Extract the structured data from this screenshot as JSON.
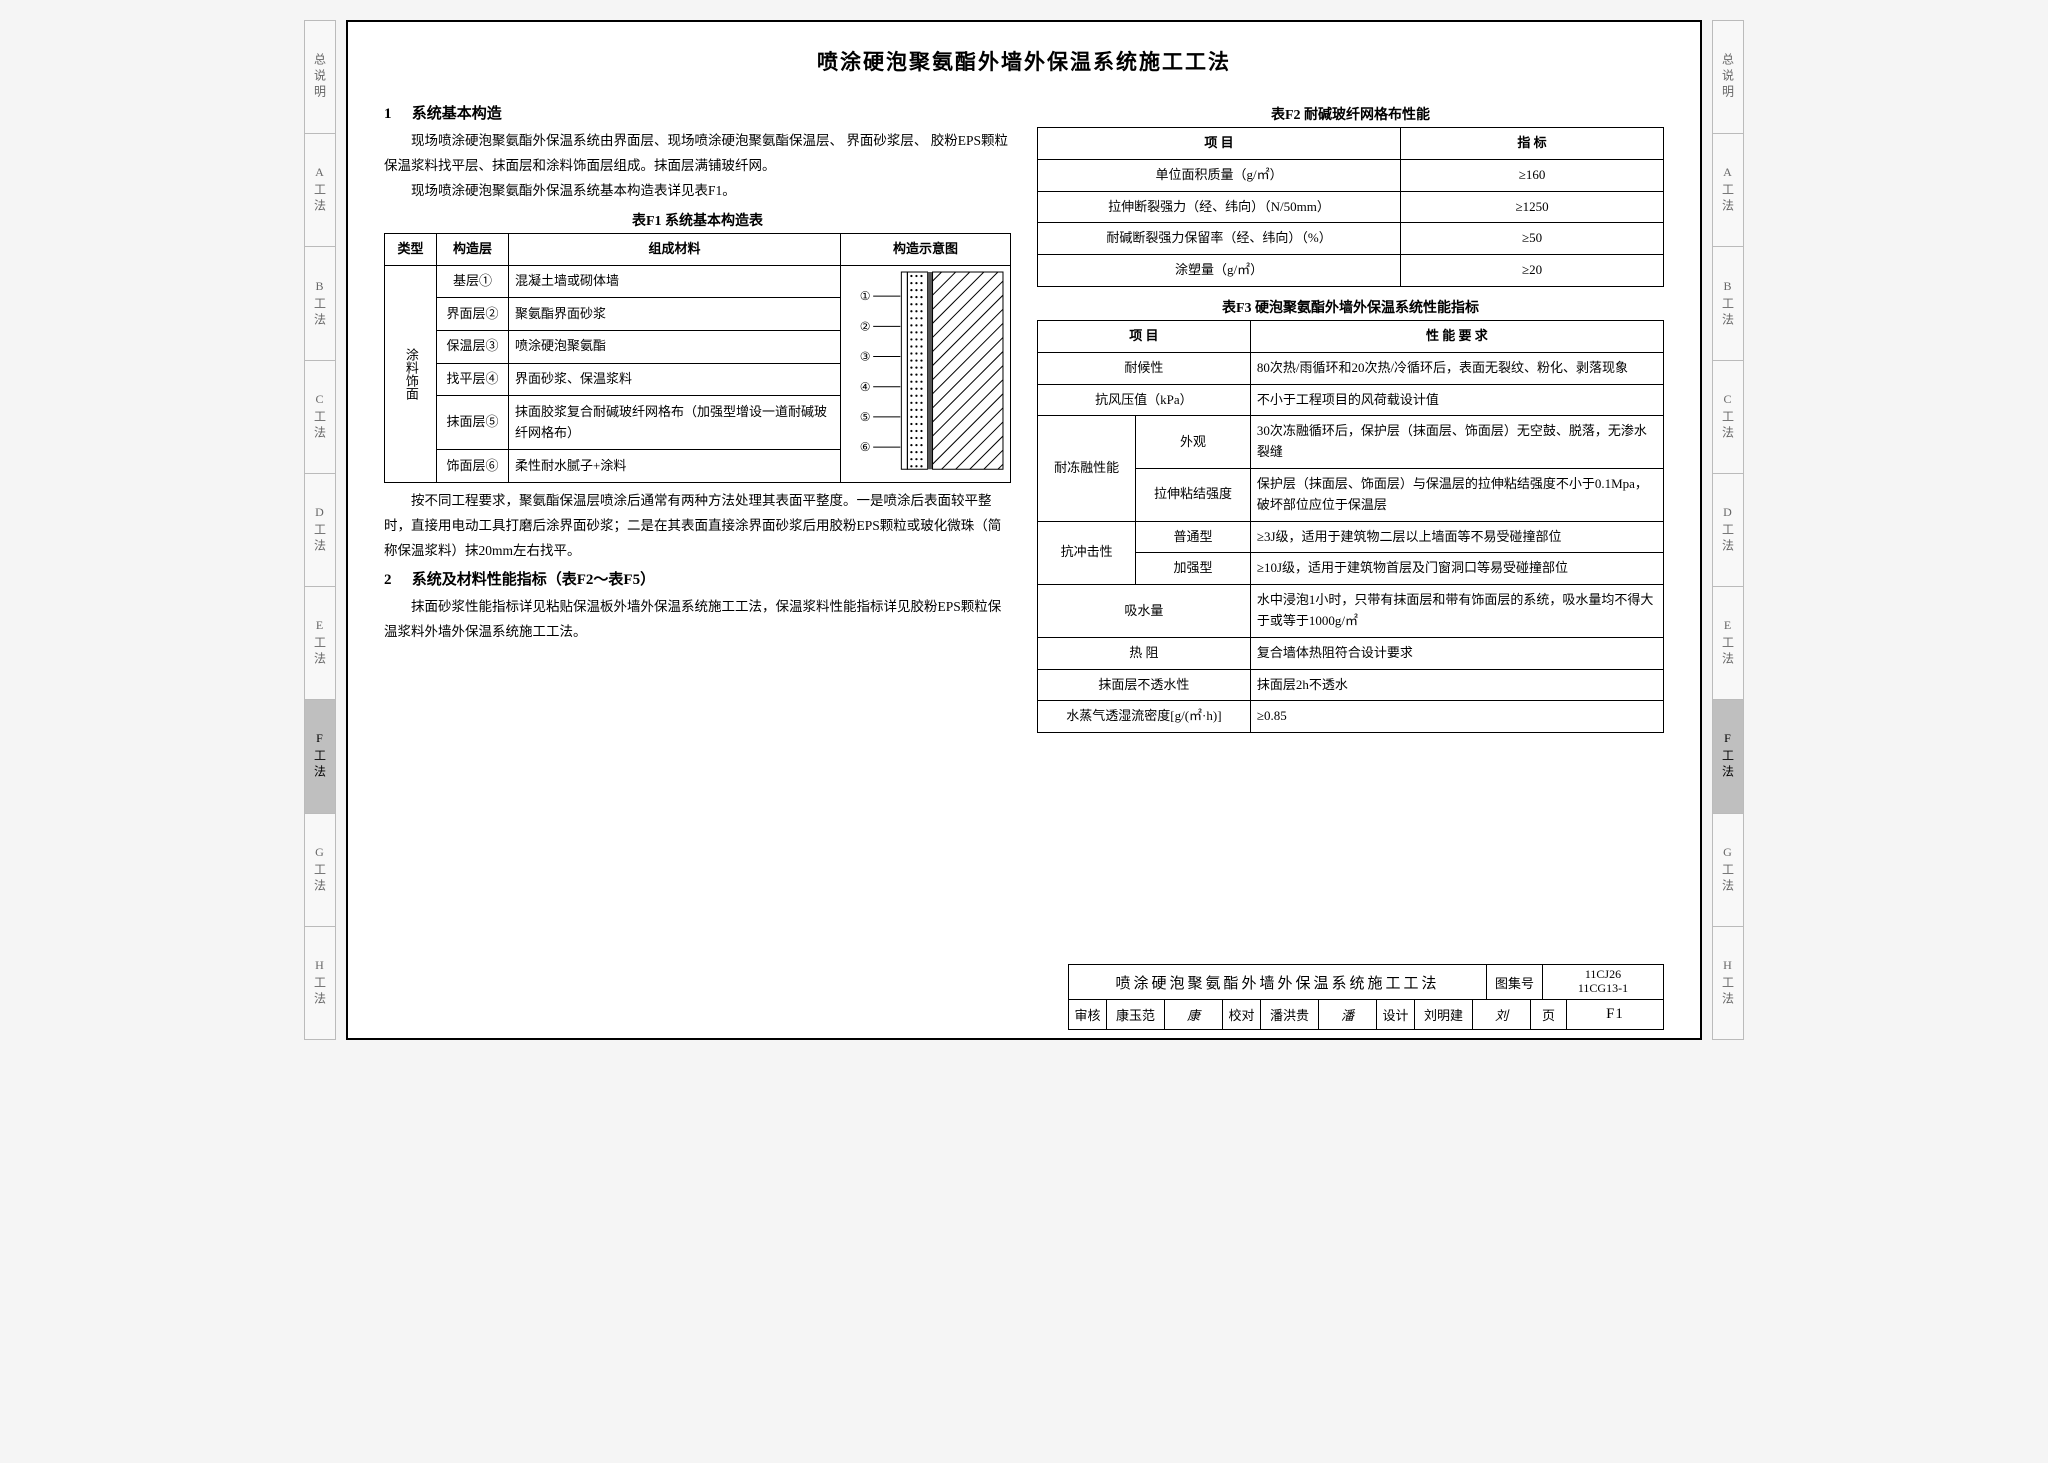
{
  "nav_tabs": [
    "总说明",
    "A工法",
    "B工法",
    "C工法",
    "D工法",
    "E工法",
    "F工法",
    "G工法",
    "H工法"
  ],
  "nav_active_index": 6,
  "page_title": "喷涂硬泡聚氨酯外墙外保温系统施工工法",
  "sec1_num": "1",
  "sec1_title": "系统基本构造",
  "para1": "现场喷涂硬泡聚氨酯外保温系统由界面层、现场喷涂硬泡聚氨酯保温层、 界面砂浆层、 胶粉EPS颗粒保温浆料找平层、抹面层和涂料饰面层组成。抹面层满铺玻纤网。",
  "para2": "现场喷涂硬泡聚氨酯外保温系统基本构造表详见表F1。",
  "f1_caption": "表F1  系统基本构造表",
  "f1": {
    "cols": [
      "类型",
      "构造层",
      "组成材料",
      "构造示意图"
    ],
    "type_rowspan_label": "涂料饰面",
    "rows": [
      {
        "layer": "基层①",
        "mat": "混凝土墙或砌体墙"
      },
      {
        "layer": "界面层②",
        "mat": "聚氨酯界面砂浆"
      },
      {
        "layer": "保温层③",
        "mat": "喷涂硬泡聚氨酯"
      },
      {
        "layer": "找平层④",
        "mat": "界面砂浆、保温浆料"
      },
      {
        "layer": "抹面层⑤",
        "mat": "抹面胶浆复合耐碱玻纤网格布（加强型增设一道耐碱玻纤网格布）"
      },
      {
        "layer": "饰面层⑥",
        "mat": "柔性耐水腻子+涂料"
      }
    ],
    "schematic_labels": [
      "①",
      "②",
      "③",
      "④",
      "⑤",
      "⑥"
    ]
  },
  "para3": "按不同工程要求，聚氨酯保温层喷涂后通常有两种方法处理其表面平整度。一是喷涂后表面较平整时，直接用电动工具打磨后涂界面砂浆；二是在其表面直接涂界面砂浆后用胶粉EPS颗粒或玻化微珠（简称保温浆料）抹20mm左右找平。",
  "sec2_num": "2",
  "sec2_title": "系统及材料性能指标（表F2～表F5）",
  "para4": "抹面砂浆性能指标详见粘贴保温板外墙外保温系统施工工法，保温浆料性能指标详见胶粉EPS颗粒保温浆料外墙外保温系统施工工法。",
  "f2_caption": "表F2  耐碱玻纤网格布性能",
  "f2": {
    "head": [
      "项    目",
      "指    标"
    ],
    "rows": [
      [
        "单位面积质量（g/㎡）",
        "≥160"
      ],
      [
        "拉伸断裂强力（经、纬向）（N/50mm）",
        "≥1250"
      ],
      [
        "耐碱断裂强力保留率（经、纬向）（%）",
        "≥50"
      ],
      [
        "涂塑量（g/㎡）",
        "≥20"
      ]
    ]
  },
  "f3_caption": "表F3  硬泡聚氨酯外墙外保温系统性能指标",
  "f3": {
    "head": [
      "项  目",
      "性  能  要  求"
    ],
    "rows": [
      {
        "k": "耐候性",
        "v": "80次热/雨循环和20次热/冷循环后，表面无裂纹、粉化、剥落现象"
      },
      {
        "k": "抗风压值（kPa）",
        "v": "不小于工程项目的风荷载设计值"
      },
      {
        "group": "耐冻融性能",
        "sub": "外观",
        "v": "30次冻融循环后，保护层（抹面层、饰面层）无空鼓、脱落，无渗水裂缝"
      },
      {
        "sub": "拉伸粘结强度",
        "v": "保护层（抹面层、饰面层）与保温层的拉伸粘结强度不小于0.1Mpa，破坏部位应位于保温层"
      },
      {
        "group": "抗冲击性",
        "sub": "普通型",
        "v": "≥3J级，适用于建筑物二层以上墙面等不易受碰撞部位"
      },
      {
        "sub": "加强型",
        "v": "≥10J级，适用于建筑物首层及门窗洞口等易受碰撞部位"
      },
      {
        "k": "吸水量",
        "v": "水中浸泡1小时，只带有抹面层和带有饰面层的系统，吸水量均不得大于或等于1000g/㎡"
      },
      {
        "k": "热  阻",
        "v": "复合墙体热阻符合设计要求"
      },
      {
        "k": "抹面层不透水性",
        "v": "抹面层2h不透水"
      },
      {
        "k": "水蒸气透湿流密度[g/(㎡·h)]",
        "v": "≥0.85"
      }
    ]
  },
  "titleblock": {
    "name": "喷涂硬泡聚氨酯外墙外保温系统施工工法",
    "atlas_label": "图集号",
    "atlas_val_1": "11CJ26",
    "atlas_val_2": "11CG13-1",
    "review_label": "审核",
    "review_name": "康玉范",
    "check_label": "校对",
    "check_name": "潘洪贵",
    "design_label": "设计",
    "design_name": "刘明建",
    "page_label": "页",
    "page_val": "F1"
  }
}
